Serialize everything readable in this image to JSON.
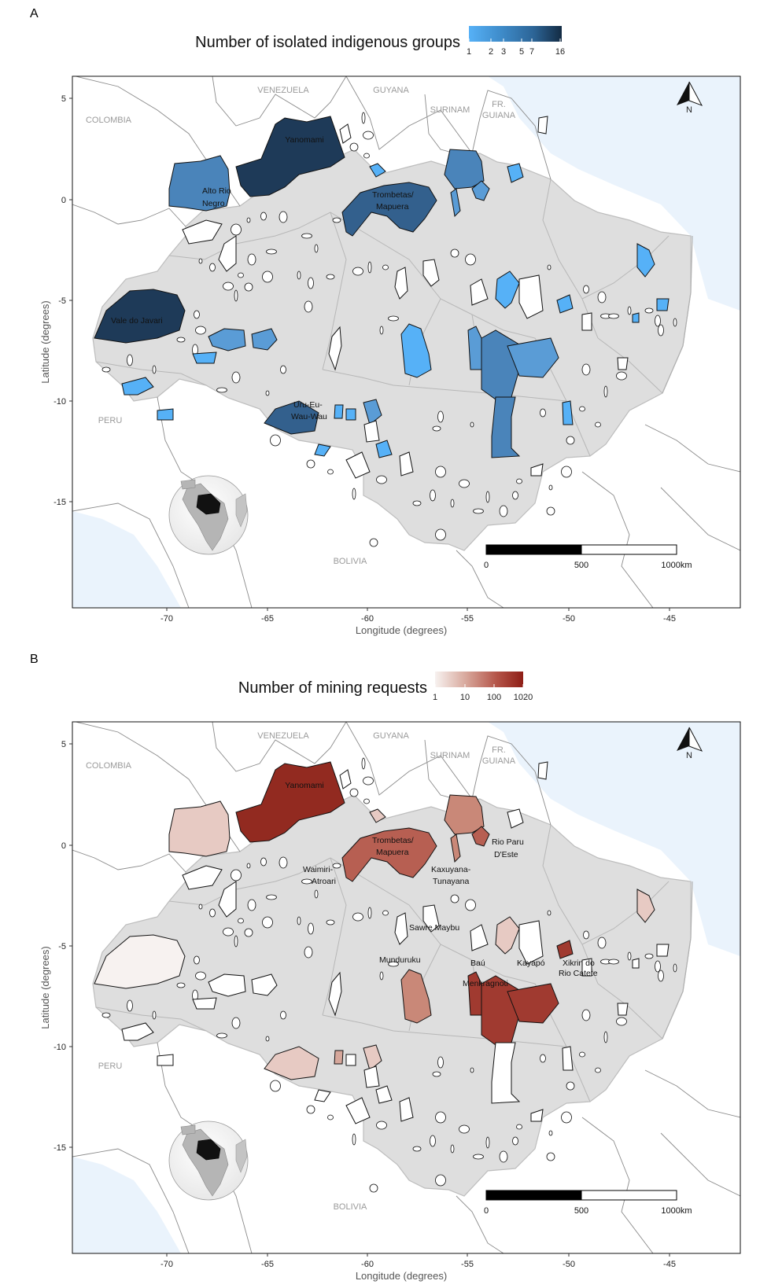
{
  "figure": {
    "width": 980,
    "height": 1633
  },
  "panels": [
    {
      "id": "A",
      "letter": "A",
      "legend": {
        "title": "Number of isolated indigenous groups",
        "ticks": [
          "1",
          "2",
          "3",
          "5",
          "7",
          "16"
        ],
        "colors": [
          "#56B1F7",
          "#3E8BC9",
          "#2C6496",
          "#132B43"
        ]
      },
      "countries": [
        "VENEZUELA",
        "GUYANA",
        "SURINAM",
        "FR.",
        "GUIANA",
        "COLOMBIA",
        "PERU",
        "BOLIVIA"
      ],
      "labels": [
        "Yanomami",
        "Alto Rio",
        "Negro",
        "Trombetas/",
        "Mapuera",
        "Vale do Javari",
        "Uru-Eu-",
        "Wau-Wau"
      ],
      "y_ticks": [
        "5",
        "0",
        "-5",
        "-10",
        "-15"
      ],
      "x_ticks": [
        "-70",
        "-65",
        "-60",
        "-55",
        "-50",
        "-45"
      ],
      "y_axis_title": "Latitude (degrees)",
      "x_axis_title": "Longitude (degrees)",
      "scale_bar": [
        "0",
        "500",
        "1000km"
      ],
      "north": "N"
    },
    {
      "id": "B",
      "letter": "B",
      "legend": {
        "title": "Number of mining requests",
        "ticks": [
          "1",
          "10",
          "100",
          "1020"
        ],
        "colors": [
          "#F7F2F0",
          "#D8A89C",
          "#B45448",
          "#8E1E16"
        ]
      },
      "countries": [
        "VENEZUELA",
        "GUYANA",
        "SURINAM",
        "FR.",
        "GUIANA",
        "COLOMBIA",
        "PERU",
        "BOLIVIA"
      ],
      "labels": [
        "Yanomami",
        "Trombetas/",
        "Mapuera",
        "Rio Paru",
        "D'Este",
        "Waimiri-",
        "Atroari",
        "Kaxuyana-",
        "Tunayana",
        "Sawre Maybu",
        "Munduruku",
        "Baú",
        "Kayapó",
        "Menkragnoti",
        "Xikrin do",
        "Rio Catete"
      ],
      "y_ticks": [
        "5",
        "0",
        "-5",
        "-10",
        "-15"
      ],
      "x_ticks": [
        "-70",
        "-65",
        "-60",
        "-55",
        "-50",
        "-45"
      ],
      "y_axis_title": "Latitude (degrees)",
      "x_axis_title": "Longitude (degrees)",
      "scale_bar": [
        "0",
        "500",
        "1000km"
      ],
      "north": "N"
    }
  ]
}
